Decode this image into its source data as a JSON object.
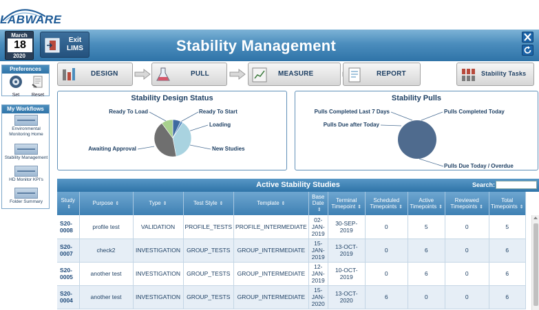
{
  "logo": {
    "text": "LABWARE"
  },
  "header": {
    "date": {
      "month": "March",
      "day": "18",
      "year": "2020"
    },
    "exit_label": "Exit LIMS",
    "title": "Stability Management"
  },
  "sidebar": {
    "preferences": {
      "title": "Preferences",
      "set_label": "Set",
      "reset_label": "Reset"
    },
    "workflows": {
      "title": "My Workflows",
      "items": [
        {
          "label": "Environmental Monitoring Home"
        },
        {
          "label": "Stability Management"
        },
        {
          "label": "HD Monitor KPI's"
        },
        {
          "label": "Folder Summary"
        }
      ]
    }
  },
  "steps": [
    {
      "label": "DESIGN"
    },
    {
      "label": "PULL"
    },
    {
      "label": "MEASURE"
    },
    {
      "label": "REPORT"
    }
  ],
  "stability_tasks_label": "Stability Tasks",
  "design_chart": {
    "title": "Stability Design Status",
    "slices": [
      {
        "label": "Ready To Start",
        "value": 7,
        "color": "#3f6aa0"
      },
      {
        "label": "Loading",
        "value": 2,
        "color": "#5a8ec4"
      },
      {
        "label": "New Studies",
        "value": 38,
        "color": "#a9d3e0"
      },
      {
        "label": "Awaiting Approval",
        "value": 43,
        "color": "#6f6f6f"
      },
      {
        "label": "Ready To Load",
        "value": 10,
        "color": "#a8d08d"
      }
    ]
  },
  "pulls_chart": {
    "title": "Stability Pulls",
    "slices": [
      {
        "label": "Pulls Due Today / Overdue",
        "value": 100,
        "color": "#4f6b8e"
      },
      {
        "label": "Pulls Completed Today",
        "value": 0,
        "color": "#a9d3e0"
      },
      {
        "label": "Pulls Completed Last 7 Days",
        "value": 0,
        "color": "#6f6f6f"
      },
      {
        "label": "Pulls Due after Today",
        "value": 0,
        "color": "#a8d08d"
      }
    ]
  },
  "grid": {
    "title": "Active Stability Studies",
    "search_label": "Search:",
    "search_value": "",
    "columns": [
      "Study",
      "Purpose",
      "Type",
      "Test Style",
      "Template",
      "Base Date",
      "Terminal Timepoint",
      "Scheduled Timepoints",
      "Active Timepoints",
      "Reviewed Timepoints",
      "Total Timepoints"
    ],
    "rows": [
      [
        "S20-0008",
        "profile test",
        "VALIDATION",
        "PROFILE_TESTS",
        "PROFILE_INTERMEDIATE",
        "02-JAN-2019",
        "30-SEP-2019",
        "0",
        "5",
        "0",
        "5"
      ],
      [
        "S20-0007",
        "check2",
        "INVESTIGATION",
        "GROUP_TESTS",
        "GROUP_INTERMEDIATE",
        "15-JAN-2019",
        "13-OCT-2019",
        "0",
        "6",
        "0",
        "6"
      ],
      [
        "S20-0005",
        "another test",
        "INVESTIGATION",
        "GROUP_TESTS",
        "GROUP_INTERMEDIATE",
        "12-JAN-2019",
        "10-OCT-2019",
        "0",
        "6",
        "0",
        "6"
      ],
      [
        "S20-0004",
        "another test",
        "INVESTIGATION",
        "GROUP_TESTS",
        "GROUP_INTERMEDIATE",
        "15-JAN-2020",
        "13-OCT-2020",
        "6",
        "0",
        "0",
        "6"
      ]
    ]
  }
}
